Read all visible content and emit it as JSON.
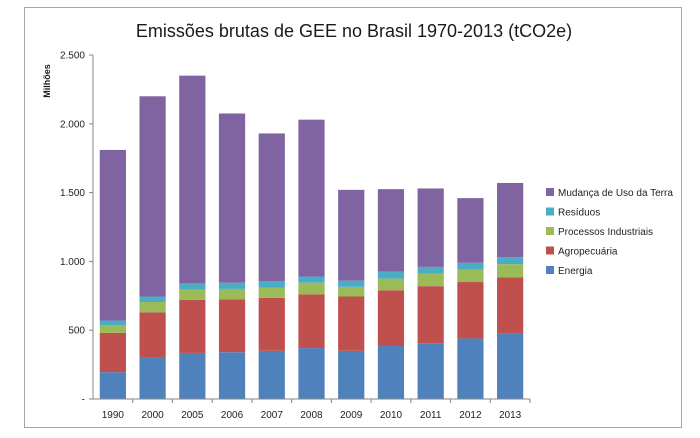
{
  "chart_data": {
    "type": "bar",
    "stacked": true,
    "title": "Emissões brutas de GEE  no Brasil 1970-2013 (tCO2e)",
    "ylabel": "Milhões",
    "xlabel": "",
    "ylim": [
      0,
      2500
    ],
    "yticks": [
      0,
      500,
      1000,
      1500,
      2000,
      2500
    ],
    "ytick_labels": [
      "-",
      "500",
      "1.000",
      "1.500",
      "2.000",
      "2.500"
    ],
    "grid": false,
    "legend_position": "right",
    "categories": [
      "1990",
      "2000",
      "2005",
      "2006",
      "2007",
      "2008",
      "2009",
      "2010",
      "2011",
      "2012",
      "2013"
    ],
    "series": [
      {
        "name": "Energia",
        "color": "#4f81bd",
        "values": [
          195,
          305,
          335,
          340,
          350,
          370,
          350,
          385,
          405,
          440,
          475
        ]
      },
      {
        "name": "Agropecuária",
        "color": "#c0504d",
        "values": [
          285,
          325,
          385,
          385,
          385,
          390,
          395,
          405,
          415,
          410,
          410
        ]
      },
      {
        "name": "Processos Industriais",
        "color": "#9bbb59",
        "values": [
          55,
          75,
          75,
          75,
          75,
          85,
          70,
          85,
          90,
          90,
          95
        ]
      },
      {
        "name": "Resíduos",
        "color": "#4bacc6",
        "values": [
          35,
          40,
          45,
          45,
          45,
          45,
          45,
          50,
          50,
          50,
          50
        ]
      },
      {
        "name": "Mudança de Uso da Terra",
        "color": "#8064a2",
        "values": [
          1240,
          1455,
          1510,
          1230,
          1075,
          1140,
          660,
          600,
          570,
          470,
          540
        ]
      }
    ]
  }
}
